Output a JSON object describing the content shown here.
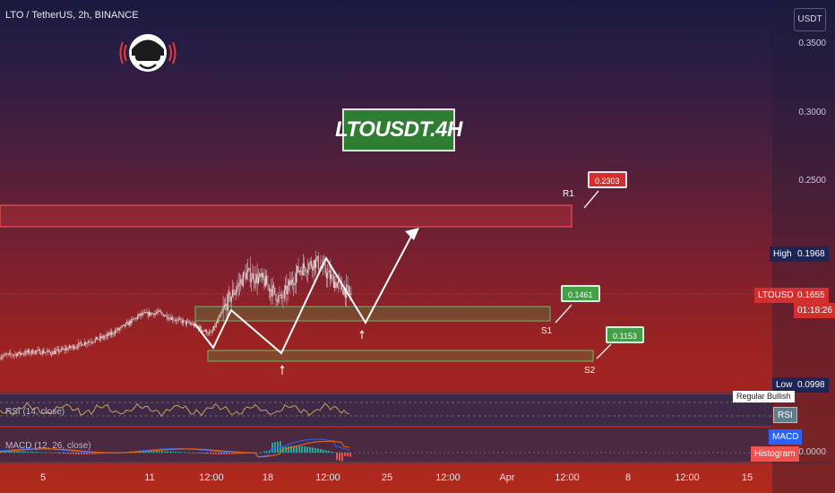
{
  "header": {
    "symbol_line": "LTO / TetherUS, 2h, BINANCE"
  },
  "banner": {
    "text": "LTOUSDT.4H"
  },
  "price_axis": {
    "currency": "USDT",
    "ticks": [
      "0.3500",
      "0.3000",
      "0.2500",
      "0.0000"
    ],
    "high": {
      "label": "High",
      "value": "0.1968"
    },
    "current": {
      "label": "LTOUSDT",
      "value": "0.1655",
      "countdown": "01:18:26"
    },
    "low": {
      "label": "Low",
      "value": "0.0998"
    }
  },
  "levels": {
    "r1": {
      "label": "R1",
      "value": "0.2303"
    },
    "s1": {
      "label": "S1",
      "value": "0.1461"
    },
    "s2": {
      "label": "S2",
      "value": "0.1153"
    }
  },
  "indicators": {
    "rsi": {
      "label": "RSI (14, close)",
      "tag": "RSI",
      "note": "Regular Bullish"
    },
    "macd": {
      "label": "MACD (12, 26, close)",
      "tag1": "MACD",
      "tag2": "Histogram"
    }
  },
  "time_axis": {
    "labels": [
      "5",
      "11",
      "12:00",
      "18",
      "12:00",
      "25",
      "12:00",
      "Apr",
      "12:00",
      "8",
      "12:00",
      "15"
    ]
  },
  "colors": {
    "up": "#26a69a",
    "down": "#ef5350",
    "resistance": "#e53935",
    "support": "#43a047"
  },
  "chart_data": {
    "type": "candlestick",
    "title": "LTO / TetherUS, 2h, BINANCE",
    "x_labels": [
      "5",
      "11",
      "12:00",
      "18",
      "12:00",
      "25",
      "12:00",
      "Apr",
      "12:00",
      "8",
      "12:00",
      "15"
    ],
    "y_ticks": [
      0.35,
      0.3,
      0.25
    ],
    "ylim": [
      0.09,
      0.37
    ],
    "high": 0.1968,
    "low": 0.0998,
    "last": 0.1655,
    "price_path": [
      [
        0.112,
        0.114
      ],
      [
        0.118,
        0.116
      ],
      [
        0.12,
        0.118
      ],
      [
        0.116,
        0.117
      ],
      [
        0.122,
        0.121
      ],
      [
        0.124,
        0.126
      ],
      [
        0.128,
        0.13
      ],
      [
        0.135,
        0.138
      ],
      [
        0.142,
        0.148
      ],
      [
        0.152,
        0.15
      ],
      [
        0.14,
        0.144
      ],
      [
        0.136,
        0.14
      ],
      [
        0.128,
        0.132
      ],
      [
        0.138,
        0.16
      ],
      [
        0.178,
        0.182
      ],
      [
        0.17,
        0.176
      ],
      [
        0.168,
        0.16
      ],
      [
        0.174,
        0.185
      ],
      [
        0.188,
        0.192
      ],
      [
        0.18,
        0.176
      ],
      [
        0.168,
        0.164
      ]
    ],
    "resistance_zone": [
      0.22,
      0.23
    ],
    "support_zone_1": [
      0.141,
      0.148
    ],
    "support_zone_2": [
      0.112,
      0.115
    ],
    "projection_path": [
      0.136,
      0.152,
      0.136,
      0.194,
      0.146,
      0.228
    ]
  }
}
